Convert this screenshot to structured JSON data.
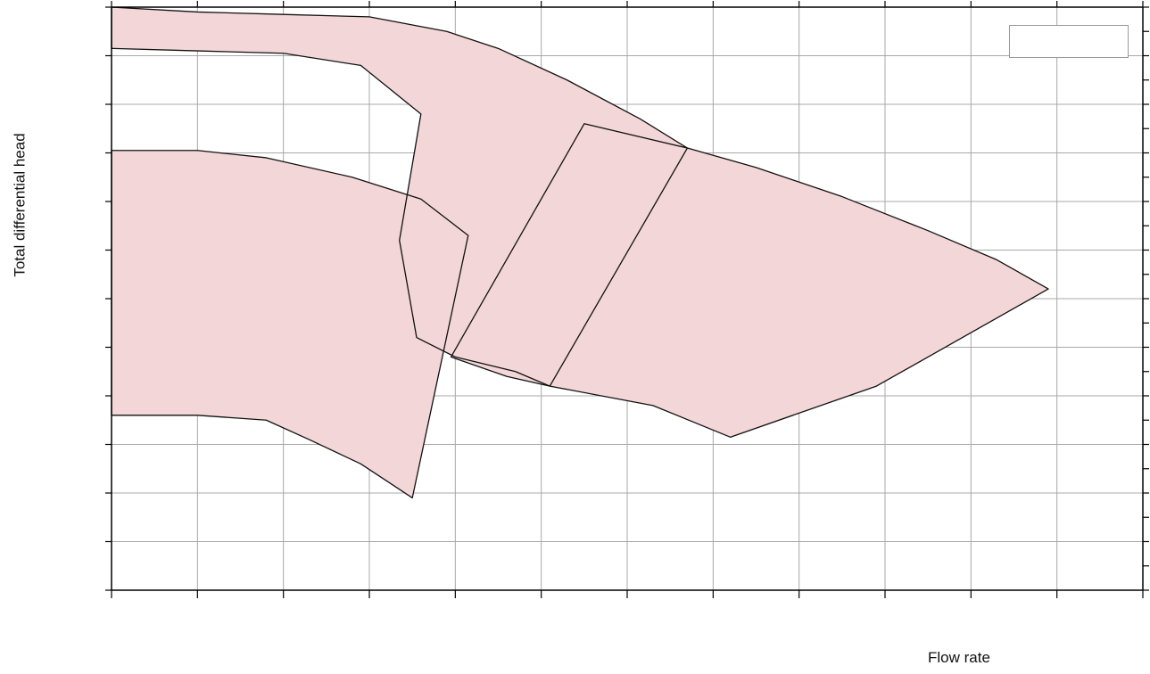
{
  "chart_data": {
    "type": "area",
    "title": "",
    "xlabel": "Flow rate",
    "ylabel": "Total differential head",
    "grid": true,
    "legend": "top-right",
    "xlim": [
      0,
      12
    ],
    "ylim": [
      0,
      12
    ],
    "regions": [
      {
        "top": [
          [
            0,
            12
          ],
          [
            1,
            11.9
          ],
          [
            2,
            11.85
          ],
          [
            3,
            11.8
          ],
          [
            3.9,
            11.5
          ],
          [
            4.5,
            11.15
          ],
          [
            5.3,
            10.5
          ],
          [
            6.15,
            9.7
          ],
          [
            6.7,
            9.1
          ]
        ],
        "bottom": [
          [
            0,
            11.15
          ],
          [
            1,
            11.1
          ],
          [
            2,
            11.05
          ],
          [
            2.9,
            10.8
          ],
          [
            3.6,
            9.8
          ]
        ],
        "close": [
          [
            6.7,
            9.1
          ],
          [
            5.1,
            4.2
          ],
          [
            4.7,
            4.5
          ],
          [
            4.0,
            4.8
          ],
          [
            3.55,
            5.2
          ],
          [
            3.35,
            7.2
          ]
        ]
      },
      {
        "top": [
          [
            5.5,
            9.6
          ],
          [
            6.7,
            9.1
          ],
          [
            7.5,
            8.7
          ],
          [
            8.5,
            8.1
          ],
          [
            9.5,
            7.4
          ],
          [
            10.3,
            6.8
          ],
          [
            10.9,
            6.2
          ]
        ],
        "close": [
          [
            10.9,
            6.2
          ],
          [
            8.9,
            4.2
          ],
          [
            7.2,
            3.15
          ],
          [
            6.3,
            3.8
          ],
          [
            5.1,
            4.2
          ]
        ],
        "bottom": [
          [
            5.1,
            4.2
          ],
          [
            4.6,
            4.4
          ],
          [
            3.95,
            4.8
          ]
        ]
      },
      {
        "top": [
          [
            0,
            9.05
          ],
          [
            1,
            9.05
          ],
          [
            1.8,
            8.9
          ],
          [
            2.8,
            8.5
          ],
          [
            3.6,
            8.05
          ],
          [
            4.15,
            7.3
          ]
        ],
        "close": [
          [
            4.15,
            7.3
          ],
          [
            3.5,
            1.9
          ]
        ],
        "bottom": [
          [
            3.5,
            1.9
          ],
          [
            2.9,
            2.6
          ],
          [
            2.3,
            3.1
          ],
          [
            1.8,
            3.5
          ],
          [
            1,
            3.6
          ],
          [
            0,
            3.6
          ]
        ]
      }
    ]
  },
  "colors": {
    "region_fill": "#f3d6d7",
    "region_stroke": "#111111",
    "grid": "#a8a8a8",
    "axis": "#000000"
  }
}
